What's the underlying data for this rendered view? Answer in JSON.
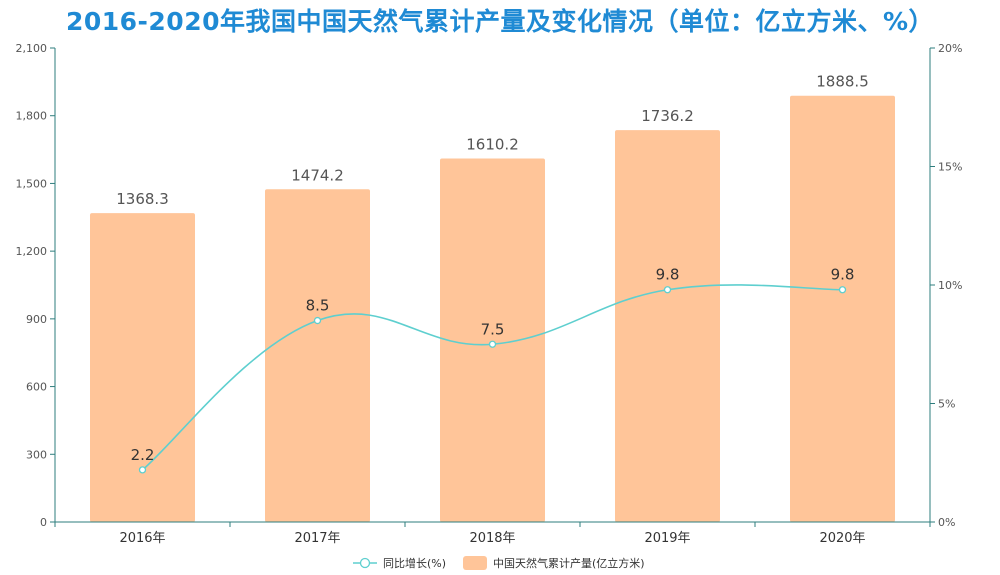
{
  "chart_data": {
    "type": "bar",
    "title": "2016-2020年我国中国天然气累计产量及变化情况（单位：亿立方米、%）",
    "categories": [
      "2016年",
      "2017年",
      "2018年",
      "2019年",
      "2020年"
    ],
    "series": [
      {
        "name": "中国天然气累计产量(亿立方米)",
        "type": "bar",
        "axis": "left",
        "values": [
          1368.3,
          1474.2,
          1610.2,
          1736.2,
          1888.5
        ],
        "color": "#ffc599"
      },
      {
        "name": "同比增长(%)",
        "type": "line",
        "axis": "right",
        "values": [
          2.2,
          8.5,
          7.5,
          9.8,
          9.8
        ],
        "color": "#5ecfcf"
      }
    ],
    "y_left": {
      "min": 0,
      "max": 2100,
      "ticks": [
        "0",
        "300",
        "600",
        "900",
        "1,200",
        "1,500",
        "1,800",
        "2,100"
      ]
    },
    "y_right": {
      "min": 0,
      "max": 20,
      "ticks": [
        "0%",
        "5%",
        "10%",
        "15%",
        "20%"
      ]
    },
    "axis_color": "#2e7d7d",
    "legend_placement": "bottom-center",
    "grid": false
  }
}
